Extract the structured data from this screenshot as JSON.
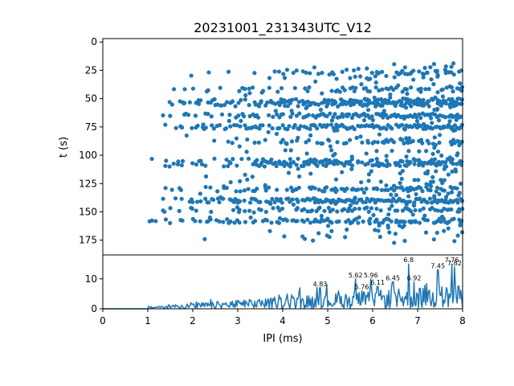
{
  "chart_data": [
    {
      "type": "scatter",
      "title": "20231001_231343UTC_V12",
      "xlabel": "",
      "ylabel": "t (s)",
      "xlim": [
        0,
        8
      ],
      "ylim": [
        188,
        -3
      ],
      "y_inverted": true,
      "yticks": [
        0,
        25,
        50,
        75,
        100,
        125,
        150,
        175
      ],
      "color": "#1f77b4",
      "row_times": [
        27,
        42,
        52,
        55,
        65,
        75,
        88,
        105,
        108,
        130,
        140,
        148,
        158
      ],
      "row_min_x": [
        1.45,
        1.45,
        1.5,
        1.5,
        1.35,
        1.4,
        2.3,
        1.05,
        1.35,
        1.3,
        1.2,
        1.1,
        1.05
      ],
      "row_density": [
        0.35,
        0.55,
        0.75,
        0.85,
        0.95,
        0.95,
        0.5,
        0.65,
        0.8,
        0.7,
        0.95,
        0.55,
        0.75
      ],
      "scatter_note": "dense dot raster; rows approximated"
    },
    {
      "type": "line",
      "xlabel": "IPI (ms)",
      "ylabel": "",
      "xlim": [
        0,
        8
      ],
      "ylim": [
        0,
        18
      ],
      "xticks": [
        0,
        1,
        2,
        3,
        4,
        5,
        6,
        7,
        8
      ],
      "yticks": [
        0,
        10
      ],
      "color": "#1f77b4",
      "peaks": [
        {
          "label": "4.83",
          "x": 4.83,
          "y": 7
        },
        {
          "label": "5.62",
          "x": 5.62,
          "y": 10
        },
        {
          "label": "5.76",
          "x": 5.76,
          "y": 6
        },
        {
          "label": "5.96",
          "x": 5.96,
          "y": 10
        },
        {
          "label": "6.11",
          "x": 6.11,
          "y": 7.5
        },
        {
          "label": "6.45",
          "x": 6.45,
          "y": 9
        },
        {
          "label": "6.8",
          "x": 6.8,
          "y": 15
        },
        {
          "label": "6.92",
          "x": 6.92,
          "y": 9
        },
        {
          "label": "7.45",
          "x": 7.45,
          "y": 13
        },
        {
          "label": "7.76",
          "x": 7.76,
          "y": 15
        },
        {
          "label": "7.82",
          "x": 7.82,
          "y": 14
        }
      ]
    }
  ]
}
